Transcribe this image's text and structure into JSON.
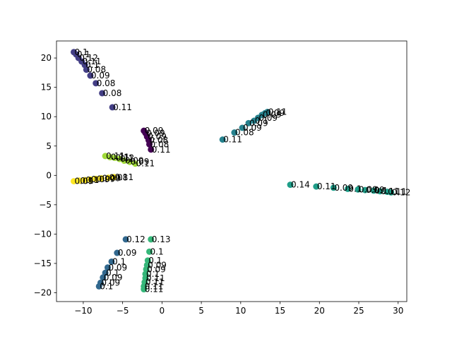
{
  "chart_data": {
    "type": "scatter",
    "title": "",
    "xlabel": "",
    "ylabel": "",
    "xlim": [
      -13.4,
      31.1
    ],
    "ylim": [
      -21.5,
      22.9
    ],
    "xticks": [
      -10,
      -5,
      0,
      5,
      10,
      15,
      20,
      25,
      30
    ],
    "yticks": [
      -20,
      -15,
      -10,
      -5,
      0,
      5,
      10,
      15,
      20
    ],
    "grid": false,
    "legend": "none",
    "series": [
      {
        "color": "#440154",
        "points": [
          {
            "x": -2.3,
            "y": 7.6,
            "label": "0.09"
          },
          {
            "x": -2.1,
            "y": 7.2,
            "label": "0.09"
          },
          {
            "x": -1.9,
            "y": 6.6,
            "label": "0.09"
          },
          {
            "x": -1.7,
            "y": 6.0,
            "label": "0.08"
          },
          {
            "x": -1.6,
            "y": 5.3,
            "label": "0.08"
          },
          {
            "x": -1.4,
            "y": 4.4,
            "label": "0.11"
          }
        ]
      },
      {
        "color": "#433e85",
        "points": [
          {
            "x": -11.2,
            "y": 21.0,
            "label": "0.1"
          },
          {
            "x": -10.9,
            "y": 20.6,
            "label": "0.1"
          },
          {
            "x": -10.6,
            "y": 20.0,
            "label": "0.12"
          },
          {
            "x": -10.2,
            "y": 19.4,
            "label": "0.11"
          },
          {
            "x": -9.8,
            "y": 18.8,
            "label": "0.1"
          },
          {
            "x": -9.6,
            "y": 18.0,
            "label": "0.08"
          },
          {
            "x": -9.1,
            "y": 17.0,
            "label": "0.09"
          },
          {
            "x": -8.4,
            "y": 15.7,
            "label": "0.08"
          },
          {
            "x": -7.6,
            "y": 14.0,
            "label": "0.08"
          },
          {
            "x": -6.3,
            "y": 11.6,
            "label": "0.11"
          }
        ]
      },
      {
        "color": "#31688e",
        "points": [
          {
            "x": -4.6,
            "y": -10.9,
            "label": "0.12"
          },
          {
            "x": -5.7,
            "y": -13.2,
            "label": "0.09"
          },
          {
            "x": -6.4,
            "y": -14.7,
            "label": "0.1"
          },
          {
            "x": -6.9,
            "y": -15.7,
            "label": "0.09"
          },
          {
            "x": -7.2,
            "y": -16.6,
            "label": "0.1"
          },
          {
            "x": -7.5,
            "y": -17.4,
            "label": "0.09"
          },
          {
            "x": -7.8,
            "y": -18.3,
            "label": "0.09"
          },
          {
            "x": -8.0,
            "y": -18.9,
            "label": "0.1"
          }
        ]
      },
      {
        "color": "#26828e",
        "points": [
          {
            "x": 7.7,
            "y": 6.1,
            "label": "0.11"
          },
          {
            "x": 9.2,
            "y": 7.3,
            "label": "0.08"
          },
          {
            "x": 10.2,
            "y": 8.1,
            "label": "0.09"
          },
          {
            "x": 11.0,
            "y": 8.9,
            "label": "0.09"
          },
          {
            "x": 11.7,
            "y": 9.3,
            "label": "0.1"
          },
          {
            "x": 12.2,
            "y": 9.8,
            "label": "0.09"
          },
          {
            "x": 12.7,
            "y": 10.3,
            "label": "0.09"
          },
          {
            "x": 13.1,
            "y": 10.6,
            "label": "0.09"
          },
          {
            "x": 13.4,
            "y": 10.8,
            "label": "0.11"
          }
        ]
      },
      {
        "color": "#1f9e89",
        "points": [
          {
            "x": 16.3,
            "y": -1.6,
            "label": "0.14"
          },
          {
            "x": 19.6,
            "y": -1.9,
            "label": "0.11"
          },
          {
            "x": 21.8,
            "y": -2.1,
            "label": "0.09"
          },
          {
            "x": 23.6,
            "y": -2.3,
            "label": "0.1"
          },
          {
            "x": 24.9,
            "y": -2.4,
            "label": "0.09"
          },
          {
            "x": 25.8,
            "y": -2.5,
            "label": "0.09"
          },
          {
            "x": 26.9,
            "y": -2.6,
            "label": "0.1"
          },
          {
            "x": 27.7,
            "y": -2.7,
            "label": "0.11"
          },
          {
            "x": 28.6,
            "y": -2.8,
            "label": "0.11"
          },
          {
            "x": 29.1,
            "y": -2.9,
            "label": "0.12"
          }
        ]
      },
      {
        "color": "#35b779",
        "points": [
          {
            "x": -1.4,
            "y": -10.9,
            "label": "0.13"
          },
          {
            "x": -1.6,
            "y": -13.0,
            "label": "0.1"
          },
          {
            "x": -1.8,
            "y": -14.5,
            "label": "0.1"
          },
          {
            "x": -1.9,
            "y": -15.3,
            "label": "0.09"
          },
          {
            "x": -2.0,
            "y": -16.0,
            "label": "0.09"
          },
          {
            "x": -2.1,
            "y": -16.8,
            "label": "0.1"
          },
          {
            "x": -2.1,
            "y": -17.5,
            "label": "0.11"
          },
          {
            "x": -2.2,
            "y": -18.2,
            "label": "0.11"
          },
          {
            "x": -2.3,
            "y": -18.9,
            "label": "0.11"
          },
          {
            "x": -2.3,
            "y": -19.4,
            "label": "0.11"
          }
        ]
      },
      {
        "color": "#a0da39",
        "points": [
          {
            "x": -7.2,
            "y": 3.3,
            "label": "0.11"
          },
          {
            "x": -6.6,
            "y": 3.1,
            "label": "0.11"
          },
          {
            "x": -6.0,
            "y": 3.0,
            "label": "0.12"
          },
          {
            "x": -5.4,
            "y": 2.8,
            "label": "0.1"
          },
          {
            "x": -4.8,
            "y": 2.5,
            "label": "0.09"
          },
          {
            "x": -4.1,
            "y": 2.3,
            "label": "0.09"
          },
          {
            "x": -3.4,
            "y": 2.0,
            "label": "0.11"
          }
        ]
      },
      {
        "color": "#fde725",
        "points": [
          {
            "x": -11.2,
            "y": -1.0,
            "label": "0.09"
          },
          {
            "x": -10.5,
            "y": -0.9,
            "label": "0.1"
          },
          {
            "x": -9.8,
            "y": -0.8,
            "label": "0.1"
          },
          {
            "x": -9.1,
            "y": -0.7,
            "label": "0.09"
          },
          {
            "x": -8.4,
            "y": -0.6,
            "label": "0.09"
          },
          {
            "x": -7.7,
            "y": -0.5,
            "label": "0.09"
          },
          {
            "x": -6.8,
            "y": -0.4,
            "label": "0.08"
          },
          {
            "x": -6.1,
            "y": -0.3,
            "label": "0.11"
          }
        ]
      }
    ]
  }
}
